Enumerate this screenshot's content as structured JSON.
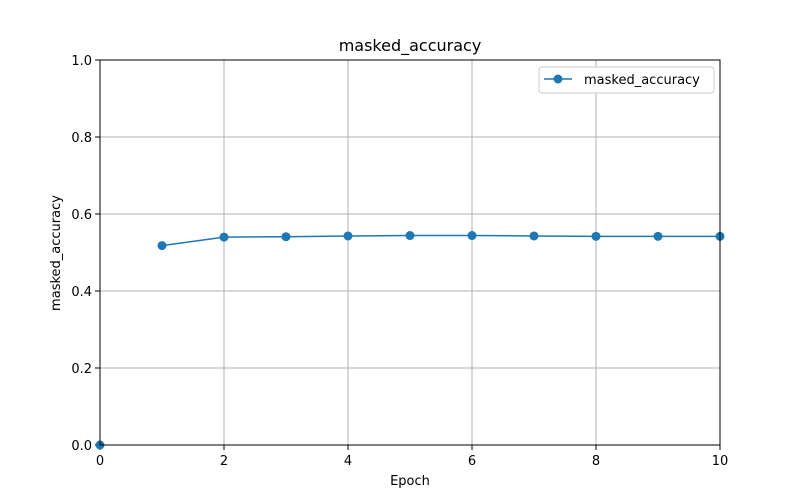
{
  "chart_data": {
    "type": "line",
    "title": "masked_accuracy",
    "xlabel": "Epoch",
    "ylabel": "masked_accuracy",
    "xlim": [
      0,
      10
    ],
    "ylim": [
      0.0,
      1.0
    ],
    "x_ticks": [
      "0",
      "2",
      "4",
      "6",
      "8",
      "10"
    ],
    "y_ticks": [
      "0.0",
      "0.2",
      "0.4",
      "0.6",
      "0.8",
      "1.0"
    ],
    "grid": true,
    "legend": "top-right",
    "series": [
      {
        "name": "masked_accuracy",
        "color": "#1f77b4",
        "x": [
          0,
          1,
          2,
          3,
          4,
          5,
          6,
          7,
          8,
          9,
          10
        ],
        "y": [
          0.0,
          0.518,
          0.54,
          0.541,
          0.543,
          0.544,
          0.544,
          0.543,
          0.542,
          0.542,
          0.542
        ],
        "connected_from_index": 1
      }
    ]
  }
}
